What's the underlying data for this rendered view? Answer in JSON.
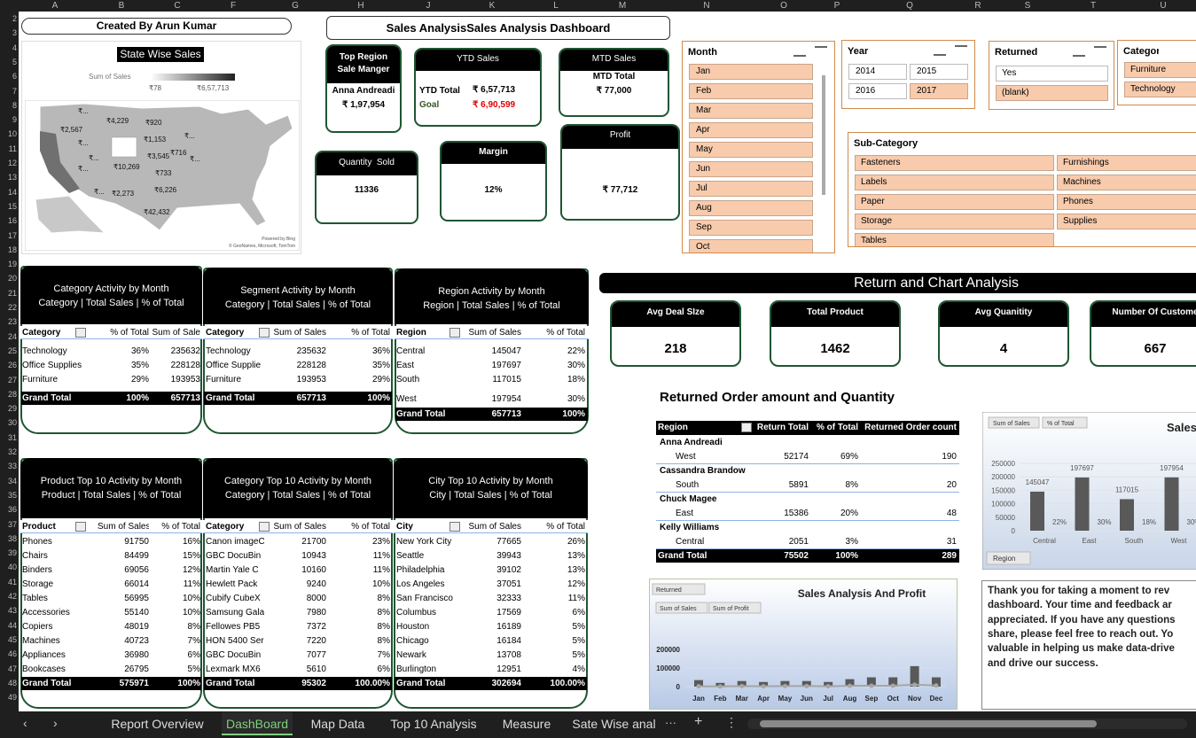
{
  "sheet": {
    "columns": [
      "A",
      "B",
      "C",
      "F",
      "G",
      "H",
      "J",
      "K",
      "L",
      "M",
      "N",
      "O",
      "P",
      "Q",
      "R",
      "S",
      "T",
      "U"
    ],
    "rows": [
      2,
      3,
      4,
      5,
      6,
      7,
      8,
      9,
      10,
      11,
      12,
      13,
      14,
      15,
      16,
      17,
      18,
      19,
      20,
      21,
      22,
      23,
      24,
      25,
      26,
      27,
      28,
      29,
      30,
      31,
      32,
      33,
      34,
      35,
      36,
      37,
      38,
      39,
      40,
      41,
      42,
      43,
      44,
      45,
      46,
      47,
      48,
      49
    ]
  },
  "credit": "Created By Arun Kumar",
  "title": "Sales AnalysisSales Analysis Dashboard",
  "map": {
    "title": "State Wise Sales",
    "legend_title": "Sum of Sales",
    "legend_min": "₹78",
    "legend_max": "₹6,57,713",
    "labels": [
      "₹...",
      "₹4,229",
      "₹920",
      "₹2,567",
      "₹...",
      "₹1,153",
      "₹...",
      "₹...",
      "₹3,545",
      "₹716",
      "₹...",
      "₹10,269",
      "₹733",
      "₹...",
      "₹2,273",
      "₹6,226",
      "₹...",
      "₹42,432"
    ],
    "attribution": [
      "Powered by Bing",
      "© GeoNames, Microsoft, TomTom"
    ]
  },
  "kpis": {
    "top_region": {
      "title": "Top Region Sale Manger",
      "name": "Anna Andreadi",
      "value": "₹ 1,97,954"
    },
    "ytd": {
      "title": "YTD Sales",
      "total_label": "YTD Total",
      "total": "₹ 6,57,713",
      "goal_label": "Goal",
      "goal": "₹ 6,90,599"
    },
    "mtd": {
      "title": "MTD Sales",
      "label": "MTD Total",
      "value": "₹ 77,000"
    },
    "quantity": {
      "title": "Quantity  Sold",
      "value": 11336
    },
    "margin": {
      "title": "Margin",
      "value": "12%"
    },
    "profit": {
      "title": "Profit",
      "value": "₹ 77,712"
    }
  },
  "slicers": {
    "month": {
      "title": "Month",
      "items": [
        "Jan",
        "Feb",
        "Mar",
        "Apr",
        "May",
        "Jun",
        "Jul",
        "Aug",
        "Sep",
        "Oct"
      ]
    },
    "year": {
      "title": "Year",
      "items": [
        2014,
        2015,
        2016,
        2017
      ]
    },
    "returned": {
      "title": "Returned",
      "items": [
        "Yes",
        "(blank)"
      ]
    },
    "category": {
      "title": "Category",
      "items": [
        "Furniture",
        "Technology"
      ]
    },
    "sub_category": {
      "title": "Sub-Category",
      "items": [
        "Fasteners",
        "Furnishings",
        "Labels",
        "Machines",
        "Paper",
        "Phones",
        "Storage",
        "Supplies",
        "Tables"
      ]
    }
  },
  "pivots": [
    {
      "title": "Category Activity by Month",
      "subtitle": "Category | Total Sales | % of Total",
      "headers": [
        "Category",
        "% of Total",
        "Sum of Sale"
      ],
      "rows": [
        [
          "Technology",
          "36%",
          235632
        ],
        [
          "Office Supplies",
          "35%",
          228128
        ],
        [
          "Furniture",
          "29%",
          193953
        ]
      ],
      "total": [
        "Grand Total",
        "100%",
        657713
      ]
    },
    {
      "title": "Segment  Activity by Month",
      "subtitle": "Category | Total Sales | % of Total",
      "headers": [
        "Category",
        "Sum of Sales",
        "% of Total"
      ],
      "rows": [
        [
          "Technology",
          235632,
          "36%"
        ],
        [
          "Office Supplie",
          228128,
          "35%"
        ],
        [
          "Furniture",
          193953,
          "29%"
        ]
      ],
      "total": [
        "Grand Total",
        657713,
        "100%"
      ]
    },
    {
      "title": "Region Activity by Month",
      "subtitle": "Region | Total Sales | % of Total",
      "headers": [
        "Region",
        "Sum of Sales",
        "% of Total"
      ],
      "rows": [
        [
          "Central",
          145047,
          "22%"
        ],
        [
          "East",
          197697,
          "30%"
        ],
        [
          "South",
          117015,
          "18%"
        ],
        [
          "West",
          197954,
          "30%"
        ]
      ],
      "total": [
        "Grand Total",
        657713,
        "100%"
      ]
    },
    {
      "title": "Product  Top 10 Activity by Month",
      "subtitle": "Product | Total Sales | % of Total",
      "headers": [
        "Product",
        "Sum of Sales",
        "% of Total"
      ],
      "rows": [
        [
          "Phones",
          91750,
          "16%"
        ],
        [
          "Chairs",
          84499,
          "15%"
        ],
        [
          "Binders",
          69056,
          "12%"
        ],
        [
          "Storage",
          66014,
          "11%"
        ],
        [
          "Tables",
          56995,
          "10%"
        ],
        [
          "Accessories",
          55140,
          "10%"
        ],
        [
          "Copiers",
          48019,
          "8%"
        ],
        [
          "Machines",
          40723,
          "7%"
        ],
        [
          "Appliances",
          36980,
          "6%"
        ],
        [
          "Bookcases",
          26795,
          "5%"
        ]
      ],
      "total": [
        "Grand Total",
        575971,
        "100%"
      ]
    },
    {
      "title": "Category Top 10 Activity by Month",
      "subtitle": "Category | Total Sales | % of Total",
      "headers": [
        "Category",
        "Sum of Sales",
        "% of Total"
      ],
      "rows": [
        [
          "Canon imageC",
          21700,
          "23%"
        ],
        [
          "GBC DocuBin",
          10943,
          "11%"
        ],
        [
          "Martin Yale C",
          10160,
          "11%"
        ],
        [
          "Hewlett Pack",
          9240,
          "10%"
        ],
        [
          "Cubify CubeX",
          8000,
          "8%"
        ],
        [
          "Samsung Gala",
          7980,
          "8%"
        ],
        [
          "Fellowes PB5",
          7372,
          "8%"
        ],
        [
          "HON 5400 Ser",
          7220,
          "8%"
        ],
        [
          "GBC DocuBin",
          7077,
          "7%"
        ],
        [
          "Lexmark MX6",
          5610,
          "6%"
        ]
      ],
      "total": [
        "Grand Total",
        95302,
        "100.00%"
      ]
    },
    {
      "title": "City Top 10 Activity by Month",
      "subtitle": "City | Total Sales | % of Total",
      "headers": [
        "City",
        "Sum of Sales",
        "% of Total"
      ],
      "rows": [
        [
          "New York City",
          77665,
          "26%"
        ],
        [
          "Seattle",
          39943,
          "13%"
        ],
        [
          "Philadelphia",
          39102,
          "13%"
        ],
        [
          "Los Angeles",
          37051,
          "12%"
        ],
        [
          "San Francisco",
          32333,
          "11%"
        ],
        [
          "Columbus",
          17569,
          "6%"
        ],
        [
          "Houston",
          16189,
          "5%"
        ],
        [
          "Chicago",
          16184,
          "5%"
        ],
        [
          "Newark",
          13708,
          "5%"
        ],
        [
          "Burlington",
          12951,
          "4%"
        ]
      ],
      "total": [
        "Grand Total",
        302694,
        "100.00%"
      ]
    }
  ],
  "returns": {
    "banner": "Return and Chart Analysis",
    "cards": [
      {
        "title": "Avg Deal SIze",
        "value": 218
      },
      {
        "title": "Total Product",
        "value": 1462
      },
      {
        "title": "Avg Quanitity",
        "value": 4
      },
      {
        "title": "Number Of Custome",
        "value": 667
      }
    ],
    "table_title": "Returned Order amount and Quantity",
    "headers": [
      "Region",
      "Return Total",
      "% of Total",
      "Returned Order count"
    ],
    "groups": [
      {
        "manager": "Anna Andreadi",
        "row": [
          "West",
          52174,
          "69%",
          190
        ]
      },
      {
        "manager": "Cassandra Brandow",
        "row": [
          "South",
          5891,
          "8%",
          20
        ]
      },
      {
        "manager": "Chuck Magee",
        "row": [
          "East",
          15386,
          "20%",
          48
        ]
      },
      {
        "manager": "Kelly Williams",
        "row": [
          "Central",
          2051,
          "3%",
          31
        ]
      }
    ],
    "total": [
      "Grand Total",
      75502,
      "100%",
      289
    ]
  },
  "region_chart": {
    "type": "bar",
    "title": "Sales",
    "filter": "Region",
    "categories": [
      "Central",
      "East",
      "South",
      "West"
    ],
    "series": [
      {
        "name": "Sum of Sales",
        "color": "#595959",
        "values": [
          145047,
          197697,
          117015,
          197954
        ]
      },
      {
        "name": "% of Total",
        "color": "#a5a5a5",
        "values": [
          22,
          30,
          18,
          30
        ],
        "value_labels": [
          "22%",
          "30%",
          "18%",
          "30%"
        ]
      }
    ],
    "ylim": [
      0,
      250000
    ],
    "yticks": [
      0,
      50000,
      100000,
      150000,
      200000,
      250000
    ]
  },
  "month_chart": {
    "type": "bar-line",
    "title": "Sales Analysis And Profit",
    "filter": "Returned",
    "categories": [
      "Jan",
      "Feb",
      "Mar",
      "Apr",
      "May",
      "Jun",
      "Jul",
      "Aug",
      "Sep",
      "Oct",
      "Nov",
      "Dec"
    ],
    "series": [
      {
        "name": "Sum of Sales",
        "color": "#595959",
        "values": [
          35000,
          20000,
          30000,
          25000,
          30000,
          30000,
          25000,
          40000,
          50000,
          50000,
          110000,
          50000
        ]
      },
      {
        "name": "Sum of Profit",
        "color": "#a5a5a5",
        "values": [
          2000,
          1000,
          3000,
          2000,
          3000,
          3000,
          2000,
          4000,
          5000,
          5000,
          10000,
          6000
        ]
      }
    ],
    "ylim": [
      -50000,
      250000
    ],
    "yticks": [
      0,
      100000,
      200000
    ]
  },
  "note": {
    "lines": [
      "Thank you for taking a moment to rev",
      "dashboard. Your time and feedback ar",
      "appreciated. If you have any questions",
      "share, please feel free to reach out. Yo",
      "valuable in helping us make data-drive",
      "and drive our success."
    ]
  },
  "tabs": {
    "items": [
      "Report Overview",
      "DashBoard",
      "Map Data",
      "Top 10 Analysis",
      "Measure",
      "Sate Wise anal"
    ],
    "active": 1
  }
}
